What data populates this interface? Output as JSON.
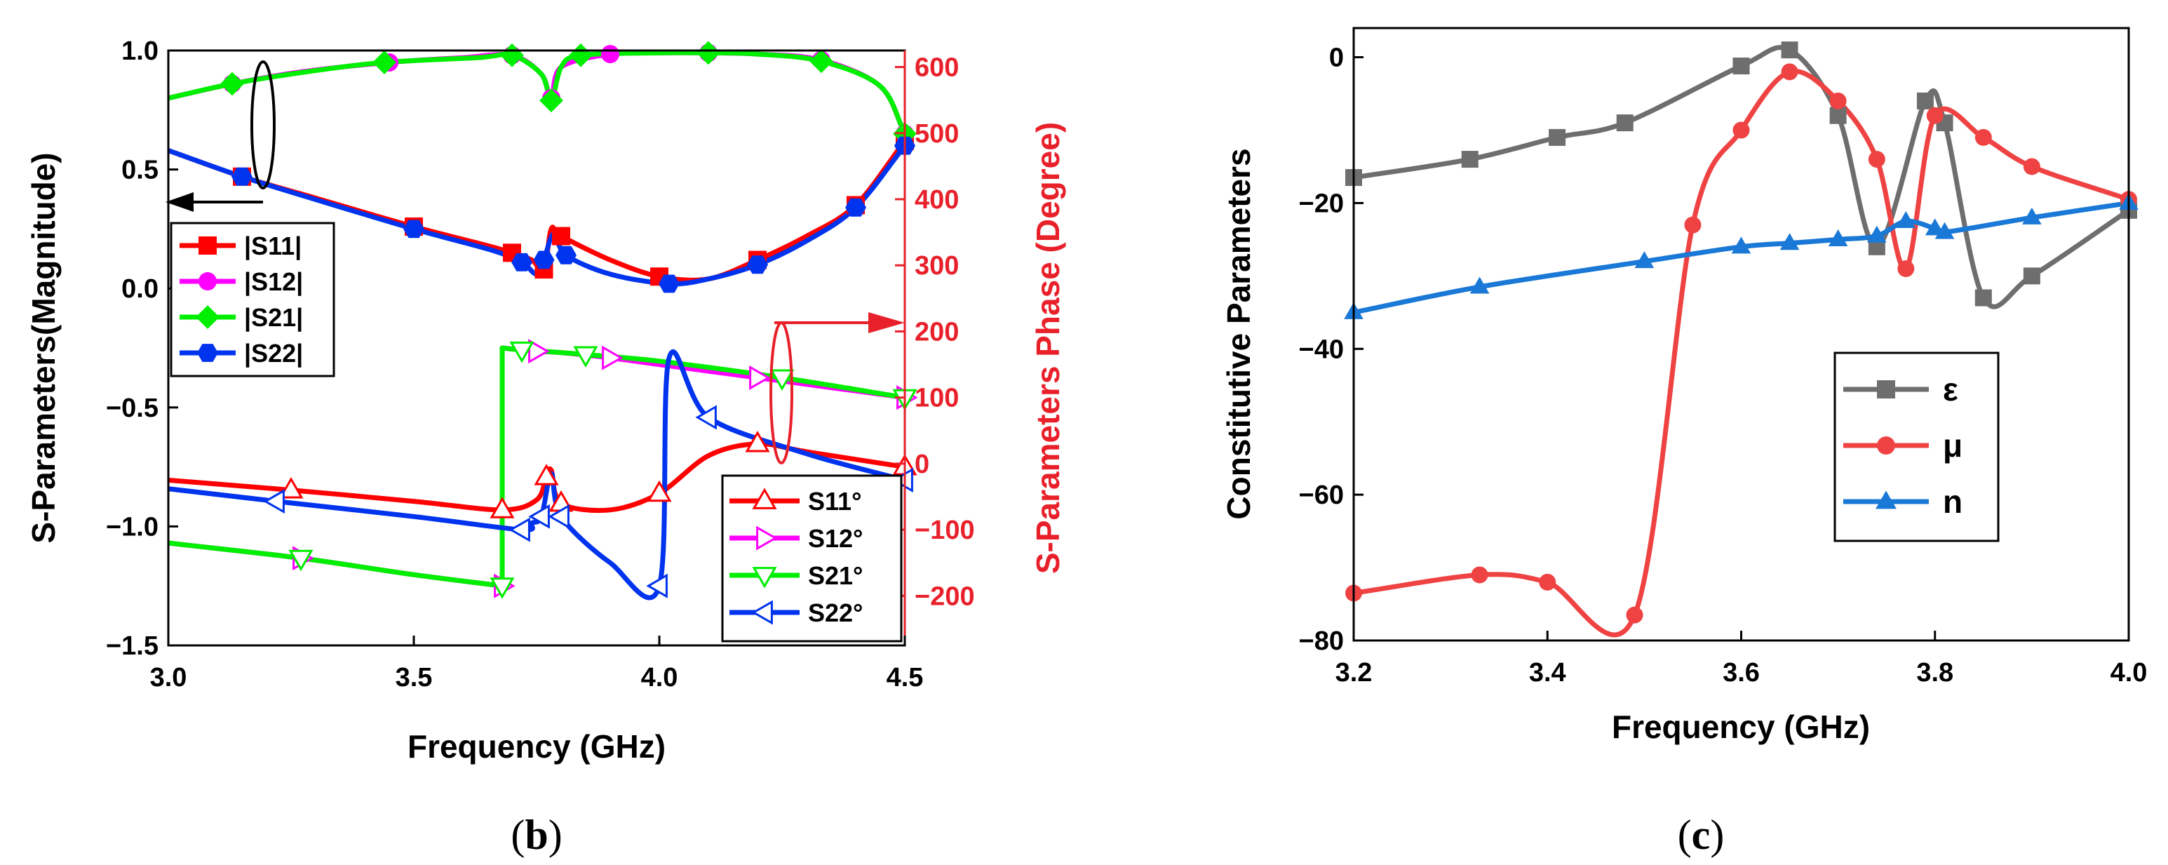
{
  "colors": {
    "s11": "#ff0000",
    "s12": "#ff00ff",
    "s21": "#00ee00",
    "s22": "#0033ee",
    "phase_axis": "#e8202a",
    "eps": "#6e6e6e",
    "mu": "#ef4343",
    "n": "#1a78d6"
  },
  "chart_data": [
    {
      "type": "line",
      "panel": "b",
      "caption_letter": "b",
      "xlabel": "Frequency (GHz)",
      "ylabel": "S-Parameters(Magnitude)",
      "y2label": "S-Parameters Phase (Degree)",
      "xlim": [
        3.0,
        4.5
      ],
      "ylim": [
        -1.5,
        1.0
      ],
      "y2lim": [
        -275,
        625
      ],
      "xticks": [
        "3.0",
        "3.5",
        "4.0",
        "4.5"
      ],
      "yticks": [
        "−1.5",
        "−1.0",
        "−0.5",
        "0.0",
        "0.5",
        "1.0"
      ],
      "y2ticks": [
        "−200",
        "−100",
        "0",
        "100",
        "200",
        "300",
        "400",
        "500",
        "600"
      ],
      "legend_magnitude": [
        "|S11|",
        "|S12|",
        "|S21|",
        "|S22|"
      ],
      "legend_phase": [
        "S11°",
        "S12°",
        "S21°",
        "S22°"
      ],
      "magnitude_series": [
        {
          "name": "|S11|",
          "x": [
            3.0,
            3.15,
            3.3,
            3.5,
            3.65,
            3.7,
            3.74,
            3.765,
            3.78,
            3.8,
            3.9,
            4.0,
            4.1,
            4.2,
            4.3,
            4.4,
            4.5
          ],
          "y": [
            0.58,
            0.47,
            0.38,
            0.26,
            0.18,
            0.15,
            0.12,
            0.08,
            0.25,
            0.22,
            0.12,
            0.05,
            0.04,
            0.12,
            0.22,
            0.35,
            0.62
          ]
        },
        {
          "name": "|S12|",
          "x": [
            3.0,
            3.13,
            3.27,
            3.45,
            3.6,
            3.7,
            3.76,
            3.78,
            3.8,
            3.9,
            4.0,
            4.1,
            4.2,
            4.33,
            4.45,
            4.5
          ],
          "y": [
            0.8,
            0.86,
            0.91,
            0.95,
            0.97,
            0.98,
            0.9,
            0.8,
            0.93,
            0.985,
            0.99,
            0.99,
            0.985,
            0.96,
            0.85,
            0.65
          ]
        },
        {
          "name": "|S21|",
          "x": [
            3.0,
            3.13,
            3.28,
            3.44,
            3.63,
            3.7,
            3.76,
            3.78,
            3.8,
            3.84,
            4.0,
            4.1,
            4.2,
            4.33,
            4.45,
            4.5
          ],
          "y": [
            0.8,
            0.86,
            0.91,
            0.95,
            0.97,
            0.98,
            0.9,
            0.79,
            0.93,
            0.98,
            0.99,
            0.99,
            0.985,
            0.955,
            0.85,
            0.65
          ]
        },
        {
          "name": "|S22|",
          "x": [
            3.0,
            3.15,
            3.29,
            3.5,
            3.66,
            3.72,
            3.75,
            3.765,
            3.785,
            3.81,
            3.9,
            4.02,
            4.1,
            4.2,
            4.3,
            4.4,
            4.5
          ],
          "y": [
            0.58,
            0.47,
            0.38,
            0.25,
            0.16,
            0.11,
            0.06,
            0.12,
            0.23,
            0.14,
            0.06,
            0.02,
            0.04,
            0.1,
            0.2,
            0.34,
            0.6
          ]
        }
      ],
      "phase_series": [
        {
          "name": "S11°",
          "x": [
            3.0,
            3.25,
            3.5,
            3.68,
            3.75,
            3.77,
            3.78,
            3.8,
            3.9,
            4.0,
            4.1,
            4.2,
            4.3,
            4.5
          ],
          "y": [
            -25,
            -40,
            -57,
            -70,
            -55,
            -20,
            -10,
            -60,
            -70,
            -45,
            12,
            30,
            18,
            -5
          ]
        },
        {
          "name": "S12°",
          "x": [
            3.0,
            3.27,
            3.5,
            3.68,
            3.68,
            3.75,
            3.8,
            3.9,
            4.0,
            4.2,
            4.5
          ],
          "y": [
            -120,
            -143,
            -168,
            -185,
            175,
            170,
            168,
            160,
            150,
            130,
            100
          ]
        },
        {
          "name": "S21°",
          "x": [
            3.0,
            3.27,
            3.5,
            3.68,
            3.68,
            3.72,
            3.8,
            3.85,
            4.0,
            4.25,
            4.5
          ],
          "y": [
            -120,
            -143,
            -168,
            -185,
            175,
            172,
            168,
            165,
            155,
            130,
            100
          ]
        },
        {
          "name": "S22°",
          "x": [
            3.0,
            3.22,
            3.5,
            3.72,
            3.74,
            3.76,
            3.78,
            3.8,
            3.9,
            4.0,
            4.02,
            4.1,
            4.3,
            4.5
          ],
          "y": [
            -38,
            -57,
            -80,
            -100,
            -90,
            -80,
            -15,
            -80,
            -150,
            -185,
            160,
            70,
            15,
            -25
          ]
        }
      ]
    },
    {
      "type": "line",
      "panel": "c",
      "caption_letter": "c",
      "xlabel": "Frequency (GHz)",
      "ylabel": "Constitutive Parameters",
      "xlim": [
        3.2,
        4.0
      ],
      "ylim": [
        -80,
        4
      ],
      "xticks": [
        "3.2",
        "3.4",
        "3.6",
        "3.8",
        "4.0"
      ],
      "yticks": [
        "−80",
        "−60",
        "−40",
        "−20",
        "0"
      ],
      "legend": [
        "ε",
        "μ",
        "n"
      ],
      "series": [
        {
          "name": "ε",
          "x": [
            3.2,
            3.32,
            3.41,
            3.48,
            3.6,
            3.65,
            3.7,
            3.74,
            3.79,
            3.81,
            3.85,
            3.9,
            4.0
          ],
          "y": [
            -16.5,
            -14,
            -11,
            -9,
            -1.2,
            1,
            -8,
            -26,
            -6,
            -9,
            -33,
            -30,
            -21
          ]
        },
        {
          "name": "μ",
          "x": [
            3.2,
            3.33,
            3.4,
            3.49,
            3.55,
            3.6,
            3.65,
            3.7,
            3.74,
            3.77,
            3.8,
            3.85,
            3.9,
            4.0
          ],
          "y": [
            -73.5,
            -71,
            -72,
            -76.5,
            -23,
            -10,
            -2,
            -6,
            -14,
            -29,
            -8,
            -11,
            -15,
            -19.5
          ]
        },
        {
          "name": "n",
          "x": [
            3.2,
            3.33,
            3.5,
            3.6,
            3.65,
            3.7,
            3.74,
            3.77,
            3.8,
            3.81,
            3.9,
            4.0
          ],
          "y": [
            -35,
            -31.5,
            -28,
            -26,
            -25.5,
            -25,
            -24.5,
            -22.5,
            -23.5,
            -24,
            -22,
            -20
          ]
        }
      ]
    }
  ]
}
